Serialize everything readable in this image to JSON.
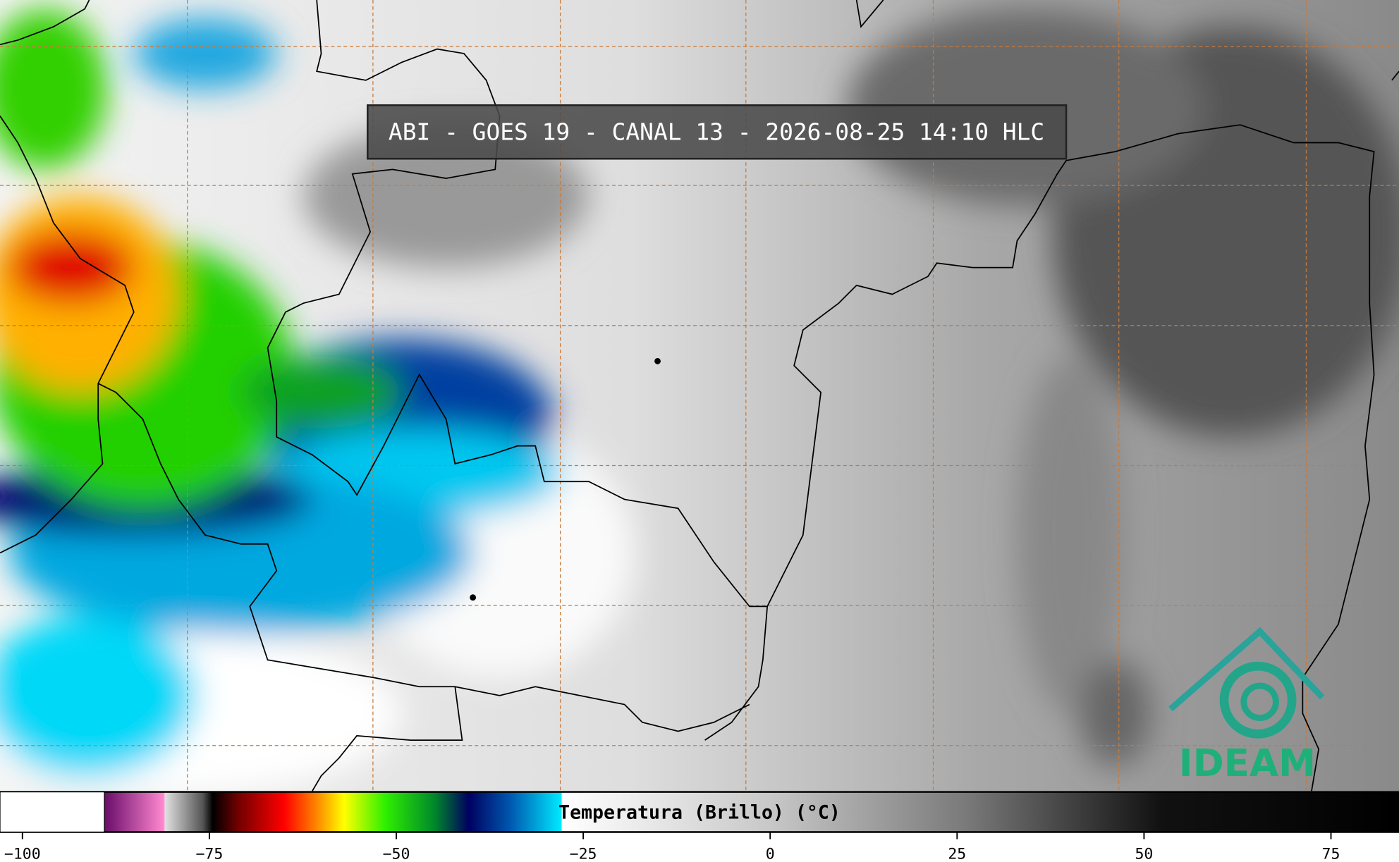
{
  "title": "ABI - GOES 19 - CANAL 13 - 2026-08-25 14:10 HLC",
  "colorbar": {
    "label": "Temperatura (Brillo) (°C)",
    "xlim": [
      -103,
      84.1
    ],
    "ticks": [
      {
        "value": -100,
        "label": "−100"
      },
      {
        "value": -75,
        "label": "−75"
      },
      {
        "value": -50,
        "label": "−50"
      },
      {
        "value": -25,
        "label": "−25"
      },
      0,
      25,
      50,
      75
    ]
  },
  "logo": "IDEAM"
}
